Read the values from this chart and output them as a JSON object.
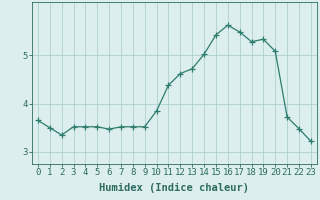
{
  "x": [
    0,
    1,
    2,
    3,
    4,
    5,
    6,
    7,
    8,
    9,
    10,
    11,
    12,
    13,
    14,
    15,
    16,
    17,
    18,
    19,
    20,
    21,
    22,
    23
  ],
  "y": [
    3.65,
    3.5,
    3.35,
    3.52,
    3.52,
    3.52,
    3.47,
    3.52,
    3.52,
    3.52,
    3.85,
    4.38,
    4.62,
    4.72,
    5.02,
    5.42,
    5.62,
    5.48,
    5.28,
    5.33,
    5.08,
    3.72,
    3.48,
    3.22
  ],
  "line_color": "#2d7d6e",
  "marker": "+",
  "marker_size": 4,
  "bg_color": "#dceeed",
  "grid_color": "#aed0ce",
  "xlabel": "Humidex (Indice chaleur)",
  "xlim": [
    -0.5,
    23.5
  ],
  "ylim": [
    2.75,
    6.1
  ],
  "yticks": [
    3,
    4,
    5
  ],
  "xtick_labels": [
    "0",
    "1",
    "2",
    "3",
    "4",
    "5",
    "6",
    "7",
    "8",
    "9",
    "10",
    "11",
    "12",
    "13",
    "14",
    "15",
    "16",
    "17",
    "18",
    "19",
    "20",
    "21",
    "22",
    "23"
  ],
  "xlabel_fontsize": 7.5,
  "tick_fontsize": 6.5,
  "tick_color": "#2d6b60",
  "axis_color": "#2d6b60",
  "lw": 0.9
}
